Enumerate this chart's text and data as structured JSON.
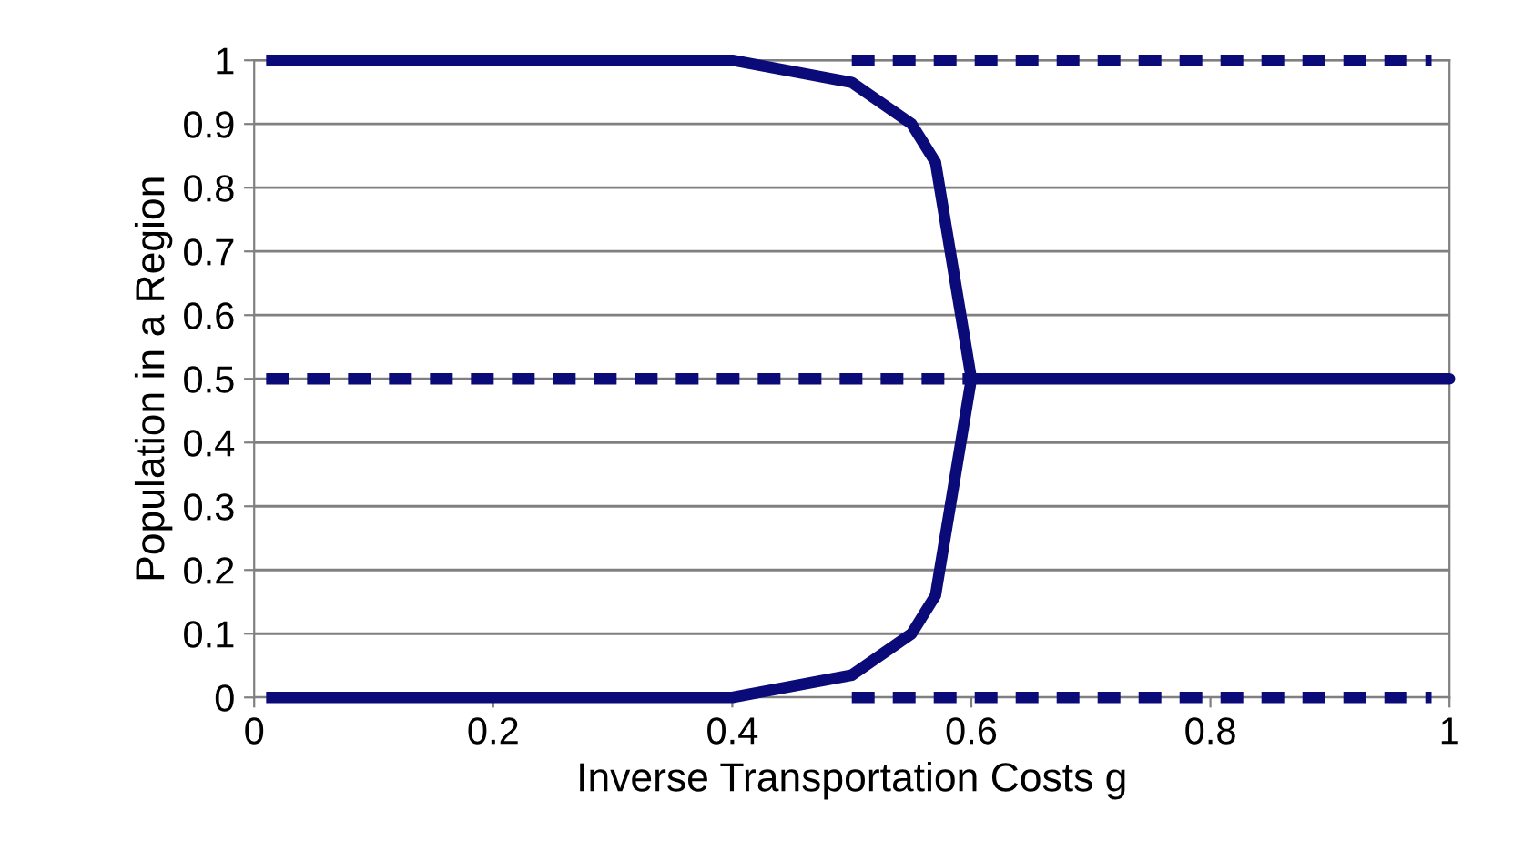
{
  "chart_data": {
    "type": "line",
    "xlabel": "Inverse Transportation Costs g",
    "ylabel": "Population in a Region",
    "xlim": [
      0,
      1
    ],
    "ylim": [
      0,
      1
    ],
    "xticks": [
      0,
      0.2,
      0.4,
      0.6,
      0.8,
      1
    ],
    "yticks": [
      0,
      0.1,
      0.2,
      0.3,
      0.4,
      0.5,
      0.6,
      0.7,
      0.8,
      0.9,
      1
    ],
    "grid": "y",
    "legend": false,
    "marker": "none",
    "series": [
      {
        "color": "#0a0a78",
        "line_style": "solid",
        "x": [
          0.01,
          0.4,
          0.5,
          0.55,
          0.57,
          0.6,
          1,
          0.6,
          0.57,
          0.55,
          0.5,
          0.4,
          0.01
        ],
        "values": [
          1,
          1,
          0.965,
          0.9,
          0.84,
          0.5,
          0.5,
          0.5,
          0.16,
          0.1,
          0.035,
          0,
          0
        ]
      },
      {
        "color": "#0a0a78",
        "line_style": "dashed",
        "x": [
          0.01,
          0.6
        ],
        "values": [
          0.5,
          0.5
        ]
      },
      {
        "color": "#0a0a78",
        "line_style": "dashed",
        "x": [
          0.5,
          0.985
        ],
        "values": [
          1,
          1
        ]
      },
      {
        "color": "#0a0a78",
        "line_style": "dashed",
        "x": [
          0.5,
          0.985
        ],
        "values": [
          0,
          0
        ]
      }
    ]
  }
}
